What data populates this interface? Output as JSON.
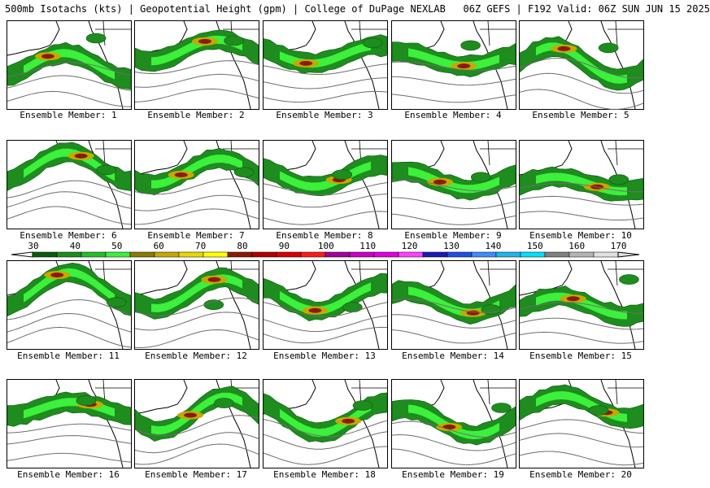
{
  "header": {
    "title": "500mb Isotachs (kts) | Geopotential Height (gpm) | College of DuPage NEXLAB   06Z GEFS | F192 Valid: 06Z SUN JUN 15 2025"
  },
  "colorbar": {
    "labels": [
      "30",
      "40",
      "50",
      "60",
      "70",
      "80",
      "90",
      "100",
      "110",
      "120",
      "130",
      "140",
      "150",
      "160",
      "170"
    ],
    "colors": [
      "#0a5a0a",
      "#1e8c1e",
      "#22c022",
      "#3cf03c",
      "#8c7a00",
      "#c8a800",
      "#e8d800",
      "#ffff00",
      "#8c1a00",
      "#b00000",
      "#d80000",
      "#ff1a1a",
      "#a000a0",
      "#c800c8",
      "#e000e0",
      "#ff40ff",
      "#1a1ab4",
      "#2050e0",
      "#3c8cff",
      "#20b4f0",
      "#00e0ff",
      "#808080",
      "#b4b4b4",
      "#e0e0e0"
    ]
  },
  "members": [
    {
      "label": "Ensemble Member: 1"
    },
    {
      "label": "Ensemble Member: 2"
    },
    {
      "label": "Ensemble Member: 3"
    },
    {
      "label": "Ensemble Member: 4"
    },
    {
      "label": "Ensemble Member: 5"
    },
    {
      "label": "Ensemble Member: 6"
    },
    {
      "label": "Ensemble Member: 7"
    },
    {
      "label": "Ensemble Member: 8"
    },
    {
      "label": "Ensemble Member: 9"
    },
    {
      "label": "Ensemble Member: 10"
    },
    {
      "label": "Ensemble Member: 11"
    },
    {
      "label": "Ensemble Member: 12"
    },
    {
      "label": "Ensemble Member: 13"
    },
    {
      "label": "Ensemble Member: 14"
    },
    {
      "label": "Ensemble Member: 15"
    },
    {
      "label": "Ensemble Member: 16"
    },
    {
      "label": "Ensemble Member: 17"
    },
    {
      "label": "Ensemble Member: 18"
    },
    {
      "label": "Ensemble Member: 19"
    },
    {
      "label": "Ensemble Member: 20"
    }
  ]
}
